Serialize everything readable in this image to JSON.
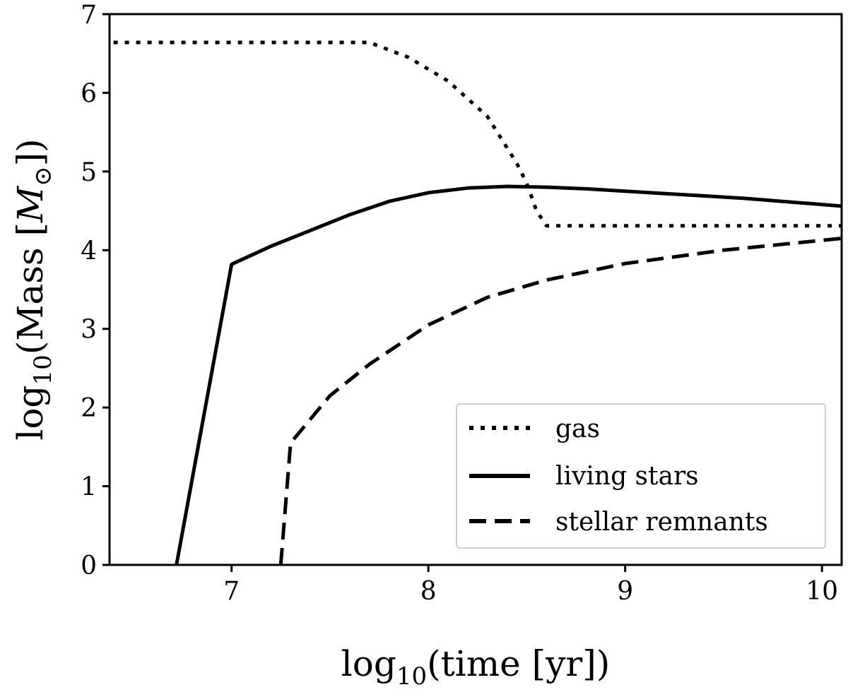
{
  "chart_data": {
    "type": "line",
    "xlabel": {
      "pre": "log",
      "sub": "10",
      "post": "(time [yr])"
    },
    "ylabel": {
      "pre": "log",
      "sub": "10",
      "post": "(Mass [",
      "italic": "M",
      "sym": "⊙",
      "end": "])"
    },
    "xlim": [
      6.38,
      10.1
    ],
    "ylim": [
      0,
      7
    ],
    "xticks": [
      "7",
      "8",
      "9",
      "10"
    ],
    "yticks": [
      "0",
      "1",
      "2",
      "3",
      "4",
      "5",
      "6",
      "7"
    ],
    "grid": false,
    "legend_position": "lower right",
    "series": [
      {
        "name": "gas",
        "style": "dotted",
        "x": [
          6.4,
          7.7,
          7.9,
          8.1,
          8.3,
          8.45,
          8.5,
          8.55,
          8.6,
          10.1
        ],
        "y": [
          6.64,
          6.64,
          6.45,
          6.15,
          5.7,
          5.1,
          4.85,
          4.5,
          4.31,
          4.31
        ]
      },
      {
        "name": "living stars",
        "style": "solid",
        "x": [
          6.72,
          7.0,
          7.2,
          7.4,
          7.6,
          7.8,
          8.0,
          8.2,
          8.4,
          8.6,
          8.8,
          9.0,
          9.2,
          9.4,
          9.6,
          9.8,
          10.1
        ],
        "y": [
          0.0,
          3.82,
          4.05,
          4.25,
          4.45,
          4.62,
          4.73,
          4.79,
          4.81,
          4.8,
          4.78,
          4.75,
          4.72,
          4.69,
          4.66,
          4.62,
          4.56
        ]
      },
      {
        "name": "stellar remnants",
        "style": "dashed",
        "x": [
          7.25,
          7.3,
          7.5,
          7.7,
          8.0,
          8.3,
          8.6,
          9.0,
          9.5,
          10.1
        ],
        "y": [
          0.0,
          1.55,
          2.15,
          2.55,
          3.05,
          3.4,
          3.62,
          3.83,
          4.0,
          4.15
        ]
      }
    ],
    "colors": {
      "line": "#000000",
      "frame": "#000000",
      "legend_border": "#cccccc"
    }
  }
}
